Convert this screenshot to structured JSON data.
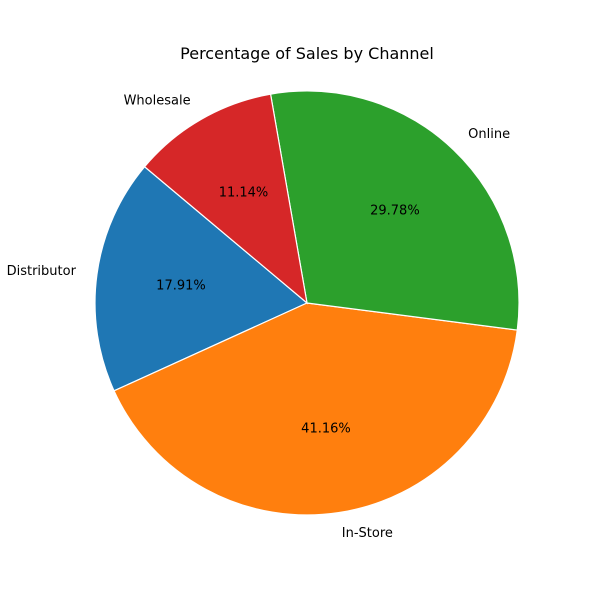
{
  "chart_data": {
    "type": "pie",
    "title": "Percentage of Sales by Channel",
    "categories": [
      "Distributor",
      "In-Store",
      "Online",
      "Wholesale"
    ],
    "values": [
      17.91,
      41.16,
      29.78,
      11.14
    ],
    "value_labels": [
      "17.91%",
      "41.16%",
      "29.78%",
      "11.14%"
    ],
    "colors": [
      "#1f77b4",
      "#ff7f0e",
      "#2ca02c",
      "#d62728"
    ],
    "start_angle_deg": 140,
    "direction": "counterclockwise"
  }
}
